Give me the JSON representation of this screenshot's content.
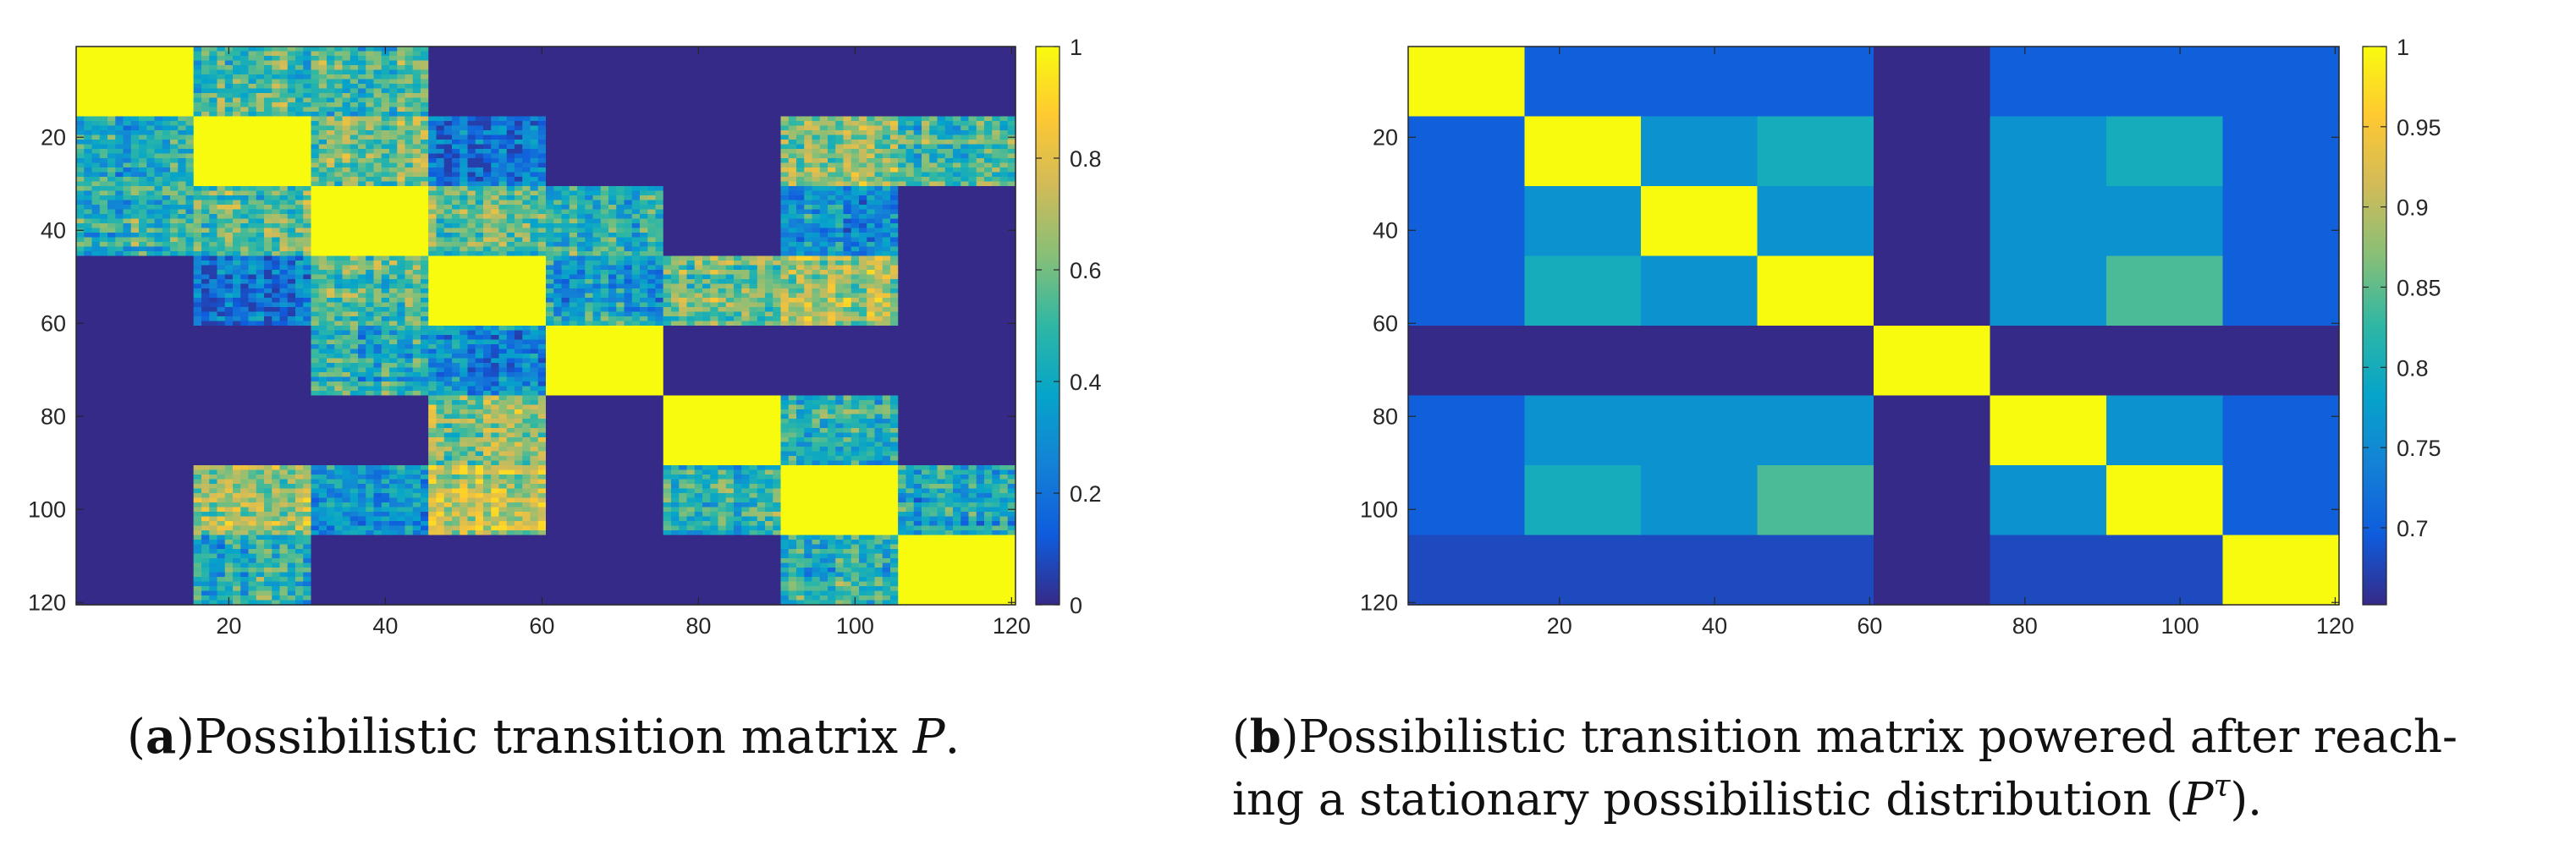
{
  "colors": {
    "parula": [
      "#352a87",
      "#0f5cdd",
      "#1481d6",
      "#06a4ca",
      "#2eb7a4",
      "#87bf77",
      "#d1bb59",
      "#fec832",
      "#f9fb0e"
    ]
  },
  "panels": [
    {
      "caption": {
        "letter": "a",
        "text": "Possibilistic transition matrix ",
        "math": "P",
        "tail": "."
      }
    },
    {
      "caption": {
        "letter": "b",
        "line1": "Possibilistic transition matrix powered after reach-",
        "line2_prefix": "ing a stationary possibilistic distribution (",
        "math": "P",
        "sup": "τ",
        "line2_suffix": ")."
      }
    }
  ],
  "chart_data": [
    {
      "type": "heatmap",
      "title": "",
      "matrix_size": 120,
      "block_size": 15,
      "n_blocks": 8,
      "x_ticks": [
        20,
        40,
        60,
        80,
        100,
        120
      ],
      "y_ticks": [
        20,
        40,
        60,
        80,
        100,
        120
      ],
      "xlim": [
        0.5,
        120.5
      ],
      "ylim": [
        0.5,
        120.5
      ],
      "colorbar": {
        "min": 0,
        "max": 1,
        "ticks": [
          0,
          0.2,
          0.4,
          0.6,
          0.8,
          1
        ],
        "tick_labels": [
          "0",
          "0.2",
          "0.4",
          "0.6",
          "0.8",
          "1"
        ]
      },
      "textured": true,
      "block_values": [
        [
          1.0,
          0.5,
          0.5,
          0.0,
          0.0,
          0.0,
          0.0,
          0.0
        ],
        [
          0.45,
          1.0,
          0.6,
          0.2,
          0.0,
          0.0,
          0.65,
          0.5
        ],
        [
          0.45,
          0.55,
          1.0,
          0.55,
          0.45,
          0.0,
          0.3,
          0.0
        ],
        [
          0.0,
          0.2,
          0.55,
          1.0,
          0.4,
          0.6,
          0.7,
          0.0
        ],
        [
          0.0,
          0.0,
          0.45,
          0.3,
          1.0,
          0.0,
          0.0,
          0.0
        ],
        [
          0.0,
          0.0,
          0.0,
          0.6,
          0.0,
          1.0,
          0.45,
          0.0
        ],
        [
          0.0,
          0.65,
          0.35,
          0.75,
          0.0,
          0.45,
          1.0,
          0.4
        ],
        [
          0.0,
          0.45,
          0.0,
          0.0,
          0.0,
          0.0,
          0.45,
          1.0
        ]
      ]
    },
    {
      "type": "heatmap",
      "title": "",
      "matrix_size": 120,
      "block_size": 15,
      "n_blocks": 8,
      "x_ticks": [
        20,
        40,
        60,
        80,
        100,
        120
      ],
      "y_ticks": [
        20,
        40,
        60,
        80,
        100,
        120
      ],
      "xlim": [
        0.5,
        120.5
      ],
      "ylim": [
        0.5,
        120.5
      ],
      "colorbar": {
        "min": 0.652,
        "max": 1,
        "ticks": [
          0.7,
          0.75,
          0.8,
          0.85,
          0.9,
          0.95,
          1
        ],
        "tick_labels": [
          "0.7",
          "0.75",
          "0.8",
          "0.85",
          "0.9",
          "0.95",
          "1"
        ]
      },
      "textured": false,
      "block_values": [
        [
          1.0,
          0.7,
          0.7,
          0.7,
          0.652,
          0.7,
          0.7,
          0.7
        ],
        [
          0.7,
          1.0,
          0.76,
          0.8,
          0.652,
          0.76,
          0.8,
          0.7
        ],
        [
          0.7,
          0.76,
          1.0,
          0.76,
          0.652,
          0.76,
          0.76,
          0.7
        ],
        [
          0.7,
          0.8,
          0.76,
          1.0,
          0.652,
          0.76,
          0.84,
          0.7
        ],
        [
          0.652,
          0.652,
          0.652,
          0.652,
          1.0,
          0.652,
          0.652,
          0.652
        ],
        [
          0.7,
          0.76,
          0.76,
          0.76,
          0.652,
          1.0,
          0.76,
          0.7
        ],
        [
          0.7,
          0.8,
          0.76,
          0.84,
          0.652,
          0.76,
          1.0,
          0.7
        ],
        [
          0.68,
          0.68,
          0.68,
          0.68,
          0.652,
          0.68,
          0.68,
          1.0
        ]
      ]
    }
  ]
}
